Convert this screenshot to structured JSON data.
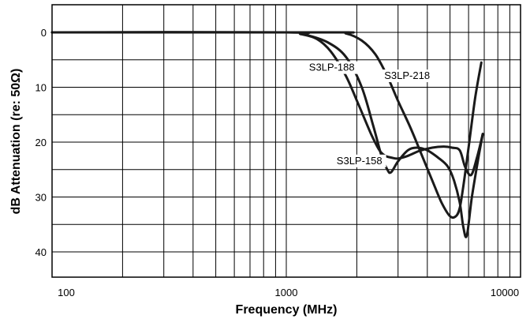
{
  "chart_data": {
    "type": "line",
    "xlabel": "Frequency (MHz)",
    "ylabel": "dB Attenuation (re: 50Ω)",
    "xscale": "log",
    "xlim": [
      100,
      10000
    ],
    "ylim": [
      0,
      45
    ],
    "y_inverted": true,
    "grid": true,
    "x_ticks": [
      {
        "value": 100,
        "label": "100"
      },
      {
        "value": 1000,
        "label": "1000"
      },
      {
        "value": 10000,
        "label": "10000"
      }
    ],
    "y_ticks": [
      {
        "value": 0,
        "label": "0"
      },
      {
        "value": 10,
        "label": "10"
      },
      {
        "value": 20,
        "label": "20"
      },
      {
        "value": 30,
        "label": "30"
      },
      {
        "value": 40,
        "label": "40"
      }
    ],
    "series": [
      {
        "name": "S3LP-158",
        "label_at": [
          1640,
          24
        ],
        "x": [
          100,
          1000,
          1150,
          1350,
          1550,
          1800,
          2050,
          2300,
          2500,
          2650,
          2800,
          3000,
          3300,
          3700,
          4200,
          4700,
          5100,
          5500,
          5800,
          6150,
          6500,
          6900
        ],
        "y": [
          0,
          0,
          0.3,
          1.2,
          3.5,
          8,
          13.5,
          18.5,
          21.5,
          22.5,
          22.8,
          23,
          22.5,
          21.6,
          21,
          20.8,
          21,
          21.5,
          24.5,
          26,
          23,
          18.5
        ]
      },
      {
        "name": "S3LP-188",
        "label_at": [
          1250,
          7
        ],
        "x": [
          100,
          1000,
          1200,
          1500,
          1800,
          2100,
          2350,
          2550,
          2700,
          2800,
          3000,
          3300,
          3600,
          4000,
          4500,
          4900,
          5200,
          5500,
          5700,
          5900,
          6200,
          6600,
          6900
        ],
        "y": [
          0,
          0,
          0.4,
          1.8,
          4.5,
          10,
          17,
          22.5,
          25,
          25.5,
          23.5,
          21.5,
          21,
          21.5,
          23,
          24.5,
          27,
          31,
          35.5,
          37,
          30,
          23,
          18.5
        ]
      },
      {
        "name": "S3LP-218",
        "label_at": [
          2620,
          8.5
        ],
        "x": [
          100,
          1500,
          1800,
          2100,
          2400,
          2700,
          3000,
          3400,
          3800,
          4200,
          4600,
          5000,
          5300,
          5500,
          5700,
          6000,
          6400,
          6800
        ],
        "y": [
          0,
          0,
          0.2,
          1.5,
          4,
          8,
          12.5,
          17.5,
          22.5,
          27,
          31,
          33.5,
          33.5,
          32,
          28,
          21,
          12,
          5.5
        ]
      }
    ]
  }
}
